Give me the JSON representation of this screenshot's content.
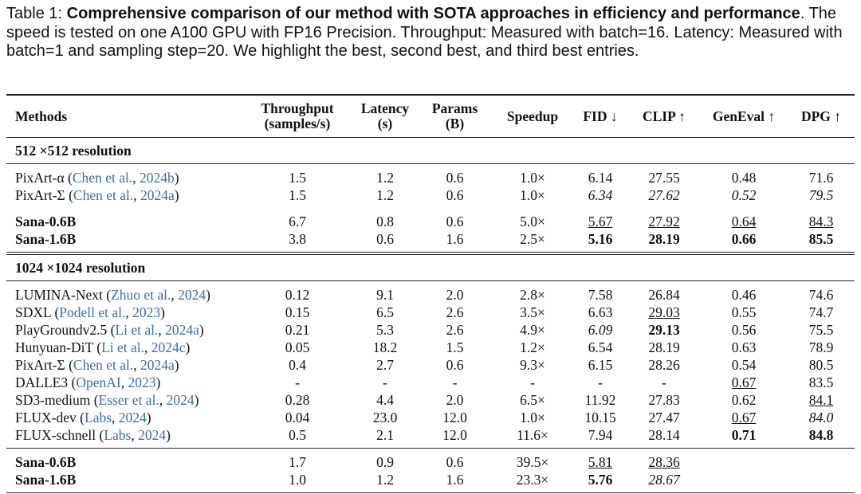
{
  "caption": {
    "label": "Table 1:",
    "bold": "Comprehensive comparison of our method with SOTA approaches in efficiency and performance",
    "rest": ". The speed is tested on one A100 GPU with FP16 Precision. Throughput: Measured with batch=16. Latency: Measured with batch=1 and sampling step=20. We highlight the best, second best, and third best entries."
  },
  "table": {
    "headers": [
      "Methods",
      "Throughput\n(samples/s)",
      "Latency\n(s)",
      "Params\n(B)",
      "Speedup",
      "FID ↓",
      "CLIP ↑",
      "GenEval ↑",
      "DPG ↑"
    ],
    "sections": [
      {
        "title": "512 ×512 resolution",
        "groups": [
          [
            {
              "name": "PixArt-α",
              "cite_author": "Chen et al.",
              "cite_year": "2024b",
              "cells": [
                "1.5",
                "1.2",
                "0.6",
                "1.0×",
                "6.14",
                "27.55",
                "0.48",
                "71.6"
              ]
            },
            {
              "name": "PixArt-Σ",
              "cite_author": "Chen et al.",
              "cite_year": "2024a",
              "cells": [
                "1.5",
                "1.2",
                "0.6",
                "1.0×",
                "6.34",
                "27.62",
                "0.52",
                "79.5"
              ],
              "fmt": {
                "4": "i",
                "5": "i",
                "6": "i",
                "7": "i"
              }
            }
          ],
          [
            {
              "name": "Sana-0.6B",
              "bold": true,
              "cells": [
                "6.7",
                "0.8",
                "0.6",
                "5.0×",
                "5.67",
                "27.92",
                "0.64",
                "84.3"
              ],
              "fmt": {
                "4": "u",
                "5": "u",
                "6": "u",
                "7": "u"
              }
            },
            {
              "name": "Sana-1.6B",
              "bold": true,
              "cells": [
                "3.8",
                "0.6",
                "1.6",
                "2.5×",
                "5.16",
                "28.19",
                "0.66",
                "85.5"
              ],
              "fmt": {
                "4": "b",
                "5": "b",
                "6": "b",
                "7": "b"
              }
            }
          ]
        ]
      },
      {
        "title": "1024 ×1024 resolution",
        "groups": [
          [
            {
              "name": "LUMINA-Next",
              "cite_author": "Zhuo et al.",
              "cite_year": "2024",
              "cells": [
                "0.12",
                "9.1",
                "2.0",
                "2.8×",
                "7.58",
                "26.84",
                "0.46",
                "74.6"
              ]
            },
            {
              "name": "SDXL",
              "cite_author": "Podell et al.",
              "cite_year": "2023",
              "cells": [
                "0.15",
                "6.5",
                "2.6",
                "3.5×",
                "6.63",
                "29.03",
                "0.55",
                "74.7"
              ],
              "fmt": {
                "5": "u"
              }
            },
            {
              "name": "PlayGroundv2.5",
              "cite_author": "Li et al.",
              "cite_year": "2024a",
              "cells": [
                "0.21",
                "5.3",
                "2.6",
                "4.9×",
                "6.09",
                "29.13",
                "0.56",
                "75.5"
              ],
              "fmt": {
                "4": "i",
                "5": "b"
              }
            },
            {
              "name": "Hunyuan-DiT",
              "cite_author": "Li et al.",
              "cite_year": "2024c",
              "cells": [
                "0.05",
                "18.2",
                "1.5",
                "1.2×",
                "6.54",
                "28.19",
                "0.63",
                "78.9"
              ]
            },
            {
              "name": "PixArt-Σ",
              "cite_author": "Chen et al.",
              "cite_year": "2024a",
              "cells": [
                "0.4",
                "2.7",
                "0.6",
                "9.3×",
                "6.15",
                "28.26",
                "0.54",
                "80.5"
              ]
            },
            {
              "name": "DALLE3",
              "cite_author": "OpenAI",
              "cite_year": "2023",
              "cells": [
                "-",
                "-",
                "-",
                "-",
                "-",
                "-",
                "0.67",
                "83.5"
              ],
              "fmt": {
                "6": "u"
              }
            },
            {
              "name": "SD3-medium",
              "cite_author": "Esser et al.",
              "cite_year": "2024",
              "cells": [
                "0.28",
                "4.4",
                "2.0",
                "6.5×",
                "11.92",
                "27.83",
                "0.62",
                "84.1"
              ],
              "fmt": {
                "7": "u"
              }
            },
            {
              "name": "FLUX-dev",
              "cite_author": "Labs",
              "cite_year": "2024",
              "cells": [
                "0.04",
                "23.0",
                "12.0",
                "1.0×",
                "10.15",
                "27.47",
                "0.67",
                "84.0"
              ],
              "fmt": {
                "6": "u",
                "7": "i"
              }
            },
            {
              "name": "FLUX-schnell",
              "cite_author": "Labs",
              "cite_year": "2024",
              "cells": [
                "0.5",
                "2.1",
                "12.0",
                "11.6×",
                "7.94",
                "28.14",
                "0.71",
                "84.8"
              ],
              "fmt": {
                "6": "b",
                "7": "b"
              }
            }
          ],
          [
            {
              "name": "Sana-0.6B",
              "bold": true,
              "cells": [
                "1.7",
                "0.9",
                "0.6",
                "39.5×",
                "5.81",
                "28.36"
              ],
              "fmt": {
                "4": "u",
                "5": "u"
              }
            },
            {
              "name": "Sana-1.6B",
              "bold": true,
              "cells": [
                "1.0",
                "1.2",
                "1.6",
                "23.3×",
                "5.76",
                "28.67"
              ],
              "fmt": {
                "4": "b",
                "5": "i"
              }
            }
          ]
        ]
      }
    ]
  }
}
